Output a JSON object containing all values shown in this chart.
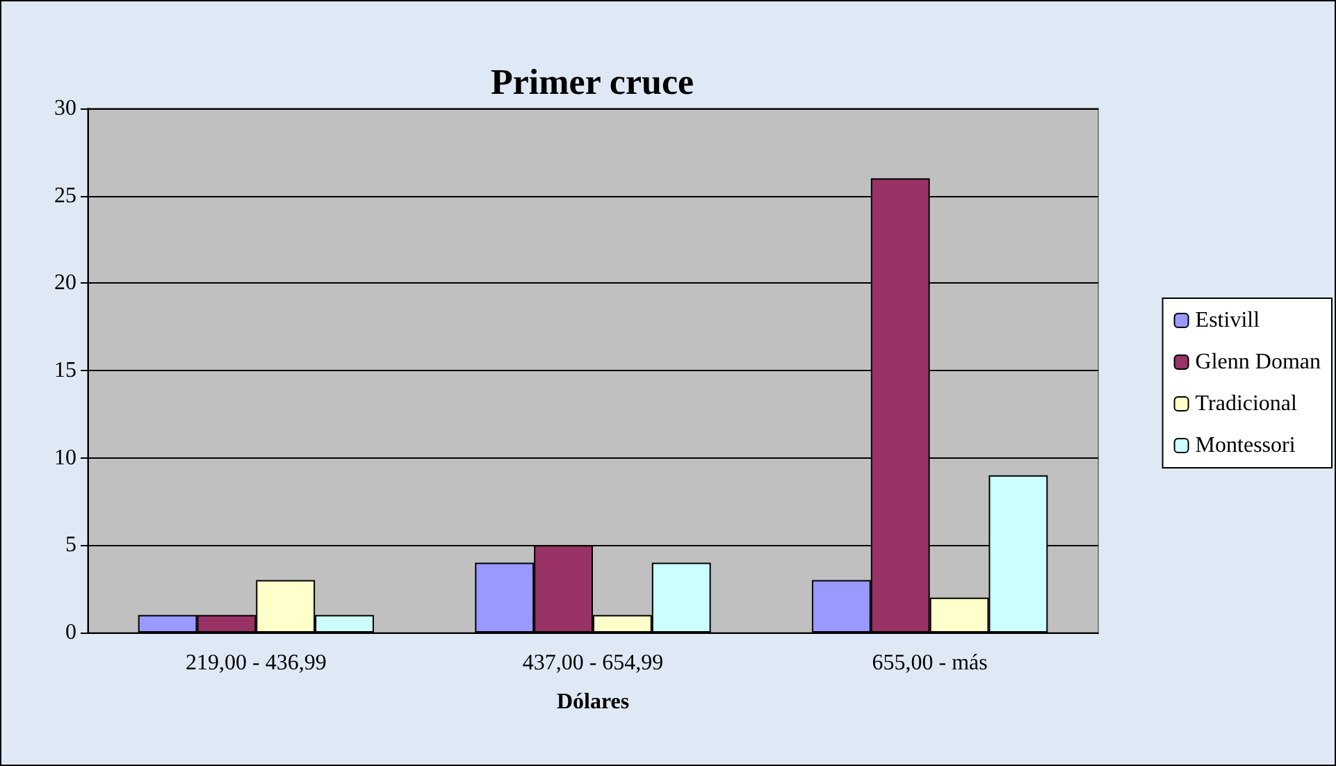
{
  "chart_data": {
    "type": "bar",
    "title": "Primer cruce",
    "xlabel": "Dólares",
    "categories": [
      "219,00 - 436,99",
      "437,00 - 654,99",
      "655,00 - más"
    ],
    "series": [
      {
        "name": "Estivill",
        "color": "#9999ff",
        "values": [
          1,
          4,
          3
        ]
      },
      {
        "name": "Glenn Doman",
        "color": "#993366",
        "values": [
          1,
          5,
          26
        ]
      },
      {
        "name": "Tradicional",
        "color": "#ffffcc",
        "values": [
          3,
          1,
          2
        ]
      },
      {
        "name": "Montessori",
        "color": "#ccffff",
        "values": [
          1,
          4,
          9
        ]
      }
    ],
    "ylim": [
      0,
      30
    ],
    "yticks": [
      0,
      5,
      10,
      15,
      20,
      25,
      30
    ],
    "grid": "y",
    "legend": "right"
  }
}
